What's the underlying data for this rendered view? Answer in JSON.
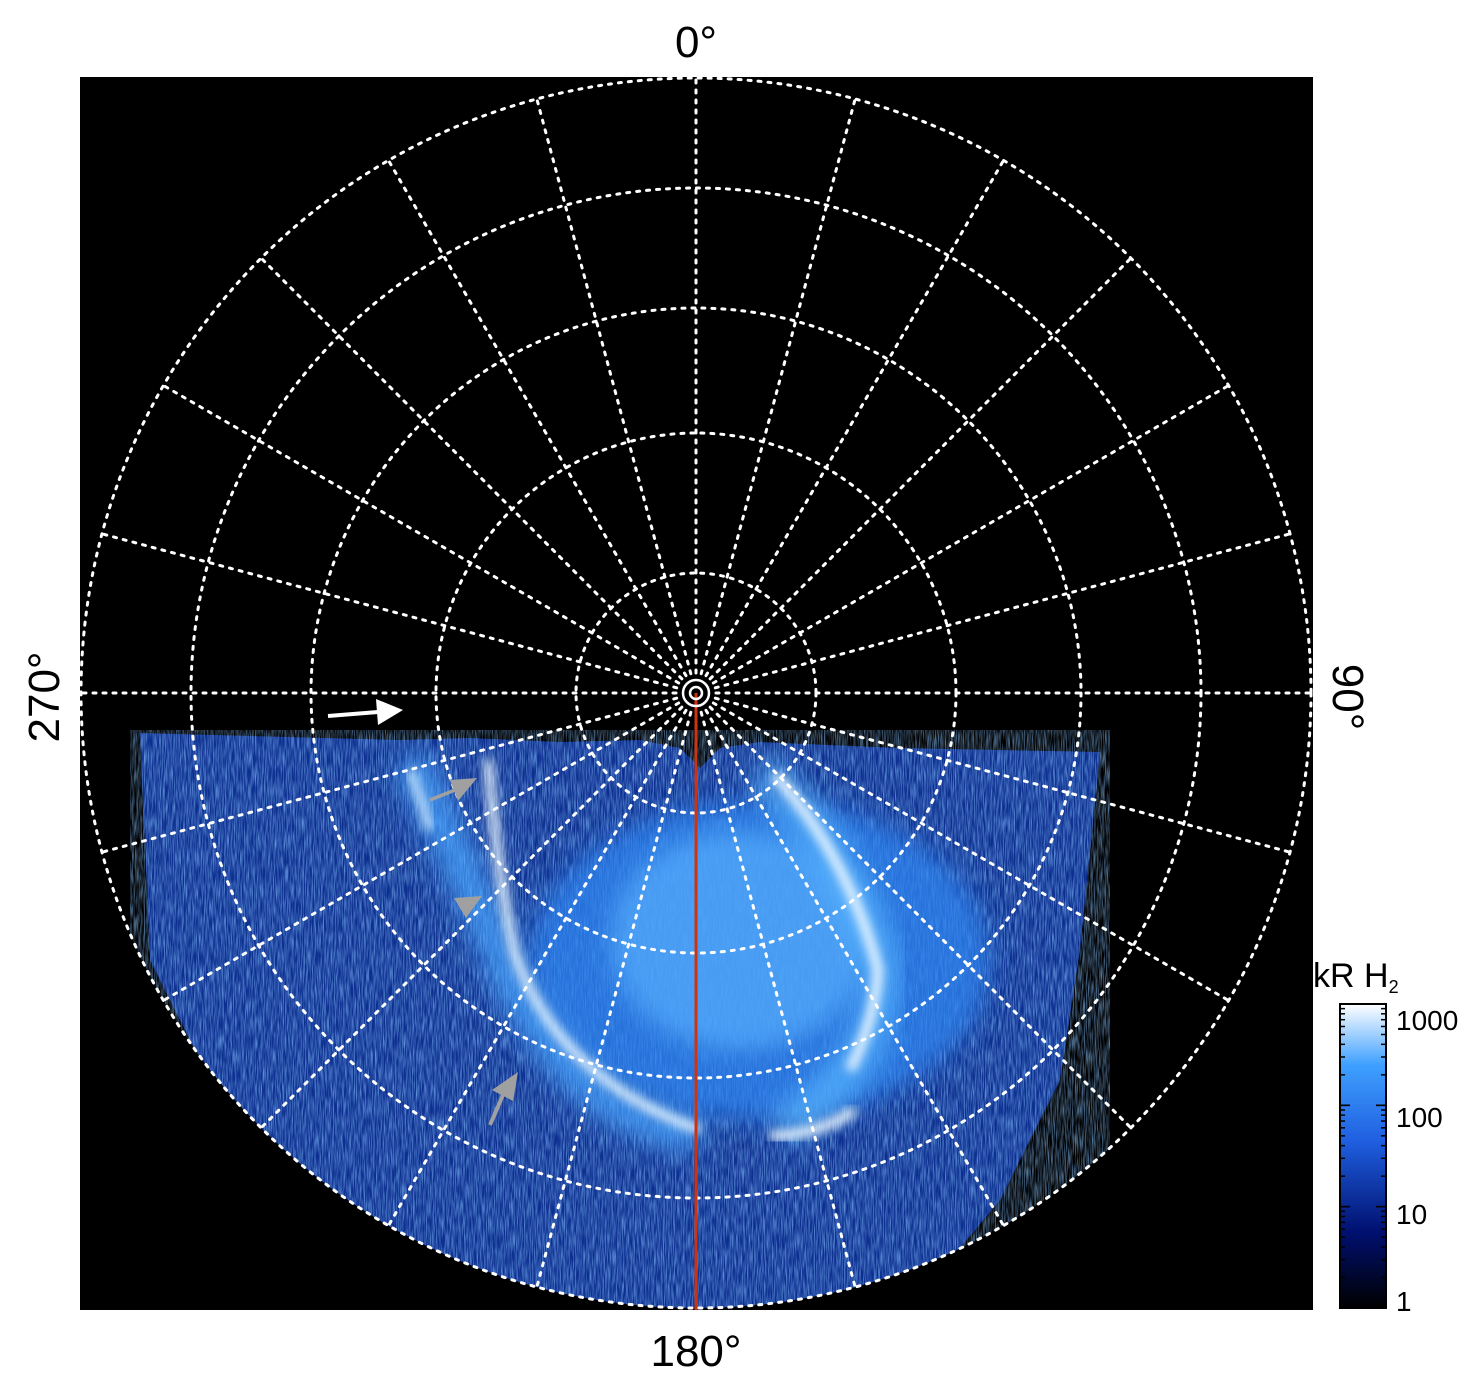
{
  "figure": {
    "projection": "polar",
    "background_color": "#000000",
    "grid_color": "#ffffff",
    "grid_style": "dotted",
    "meridian_color": "#cc3311",
    "arrow_colors": [
      "#ffffff",
      "#a0a0a0"
    ],
    "angle_labels": {
      "top": "0°",
      "right": "90°",
      "bottom": "180°",
      "left": "270°"
    },
    "colorbar": {
      "title": "kR H",
      "title_subscript": "2",
      "scale": "log",
      "ticks": [
        "1",
        "10",
        "100",
        "1000"
      ],
      "range": [
        1,
        1000
      ],
      "color_stops": [
        "#000000",
        "#001070",
        "#1f5fe0",
        "#3fa0ff",
        "#ffffff"
      ]
    }
  }
}
